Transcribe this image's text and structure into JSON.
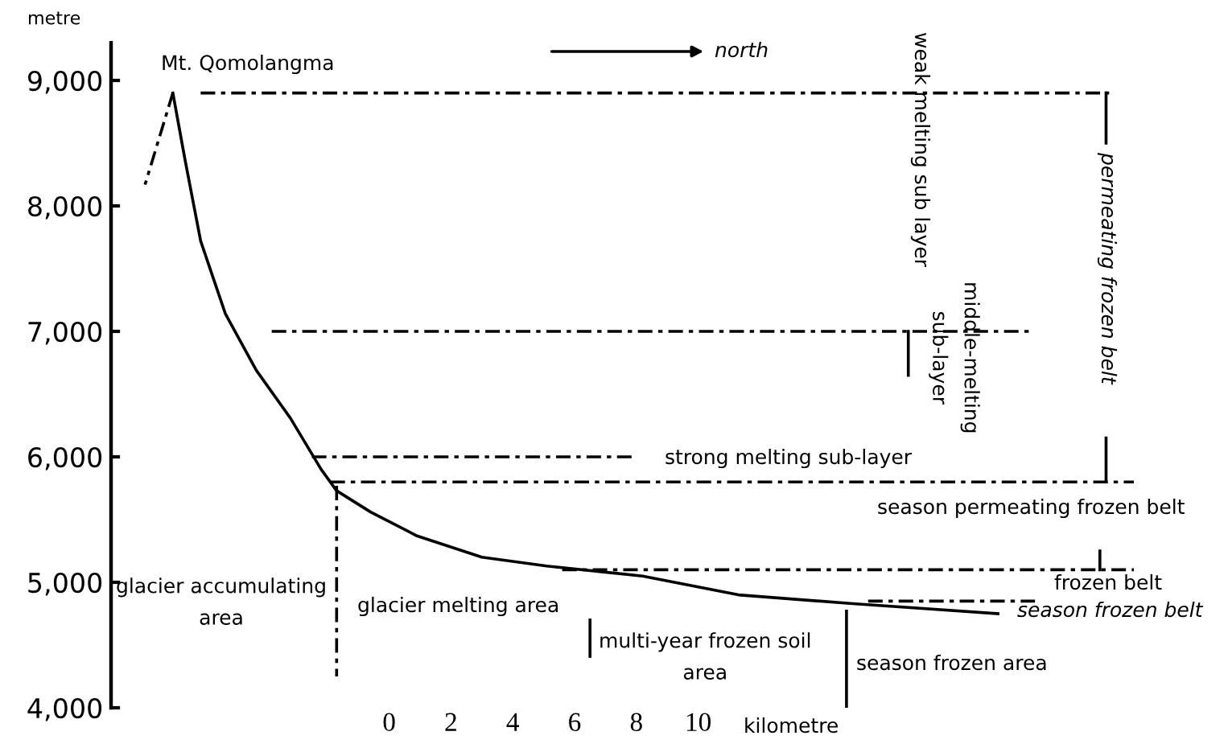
{
  "chart_data": {
    "type": "line",
    "ylabel": "metre",
    "xlabel": "kilometre",
    "xlim": [
      -9,
      24.1
    ],
    "xticks": [
      0,
      2,
      4,
      6,
      8,
      10
    ],
    "ylim": [
      4000,
      9300
    ],
    "yticks": [
      {
        "value": 4000,
        "label": "4,000"
      },
      {
        "value": 5000,
        "label": "5,000"
      },
      {
        "value": 6000,
        "label": "6,000"
      },
      {
        "value": 7000,
        "label": "7,000"
      },
      {
        "value": 8000,
        "label": "8,000"
      },
      {
        "value": 9000,
        "label": "9,000"
      }
    ],
    "grid": false,
    "legend": false,
    "marker": "none",
    "series": [
      {
        "color": "#000000",
        "line_style": "solid",
        "x": [
          -7.0,
          -6.6,
          -6.1,
          -5.3,
          -4.3,
          -3.2,
          -2.2,
          -1.7,
          -0.6,
          0.9,
          3.0,
          5.1,
          8.2,
          11.3,
          15.0,
          19.7
        ],
        "values": [
          8900,
          8360,
          7720,
          7140,
          6690,
          6310,
          5900,
          5730,
          5560,
          5370,
          5200,
          5130,
          5050,
          4900,
          4830,
          4750
        ]
      },
      {
        "color": "#000000",
        "line_style": "dashed",
        "x": [
          -7.0,
          -7.9
        ],
        "values": [
          8900,
          8170
        ]
      },
      {
        "color": "#000000",
        "line_style": "dashed",
        "x": [
          -6.1,
          23.3
        ],
        "values": [
          8900,
          8900
        ]
      },
      {
        "color": "#000000",
        "line_style": "dashed",
        "x": [
          -3.8,
          20.7
        ],
        "values": [
          7000,
          7000
        ]
      },
      {
        "color": "#000000",
        "line_style": "dashed",
        "x": [
          -2.5,
          8.0
        ],
        "values": [
          6000,
          6000
        ]
      },
      {
        "color": "#000000",
        "line_style": "dashed",
        "x": [
          -1.9,
          24.1
        ],
        "values": [
          5800,
          5800
        ]
      },
      {
        "color": "#000000",
        "line_style": "dashed",
        "x": [
          5.6,
          24.1
        ],
        "values": [
          5100,
          5100
        ]
      },
      {
        "color": "#000000",
        "line_style": "dashed",
        "x": [
          15.5,
          20.9
        ],
        "values": [
          4850,
          4850
        ]
      },
      {
        "color": "#000000",
        "line_style": "dashed",
        "x": [
          -1.7,
          -1.7
        ],
        "values": [
          5770,
          4250
        ]
      },
      {
        "color": "#000000",
        "line_style": "solid",
        "x": [
          6.5,
          6.5
        ],
        "values": [
          4700,
          4410
        ]
      },
      {
        "color": "#000000",
        "line_style": "solid",
        "x": [
          14.8,
          14.8
        ],
        "values": [
          4770,
          4000
        ]
      },
      {
        "color": "#000000",
        "line_style": "solid",
        "x": [
          16.8,
          16.8
        ],
        "values": [
          7000,
          6650
        ]
      },
      {
        "color": "#000000",
        "line_style": "solid",
        "x": [
          23.2,
          23.2
        ],
        "values": [
          8900,
          8500
        ]
      },
      {
        "color": "#000000",
        "line_style": "solid",
        "x": [
          23.2,
          23.2
        ],
        "values": [
          6150,
          5800
        ]
      },
      {
        "color": "#000000",
        "line_style": "solid",
        "x": [
          23.0,
          23.0
        ],
        "values": [
          5250,
          5100
        ]
      }
    ],
    "annotations": [
      "Mt. Qomolangma",
      "north",
      "weak melting sub layer",
      "middle-melting\nsub-layer",
      "permeating frozen belt",
      "strong melting sub-layer",
      "season permeating frozen belt",
      "frozen belt",
      "season frozen belt",
      "glacier accumulating\narea",
      "glacier melting area",
      "multi-year frozen soil\narea",
      "season frozen area"
    ]
  }
}
